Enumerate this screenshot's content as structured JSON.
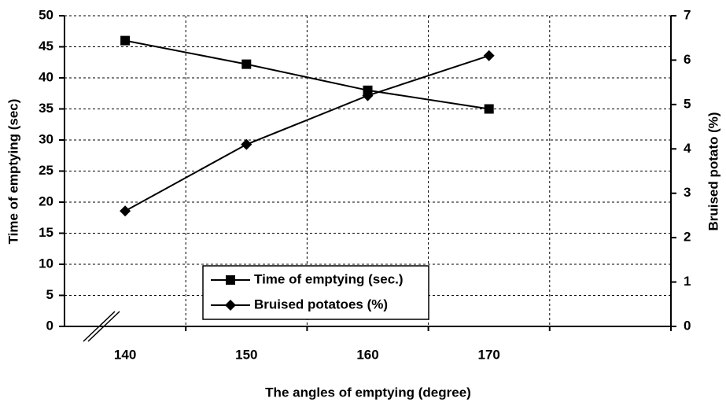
{
  "chart_data": {
    "type": "line",
    "categories": [
      "140",
      "150",
      "160",
      "170",
      null
    ],
    "series": [
      {
        "name": "Time of emptying (sec.)",
        "color": "#000000",
        "marker": "square",
        "values": [
          46,
          42.2,
          38,
          35,
          null
        ]
      },
      {
        "name": "Bruised potatoes (%)",
        "color": "#000000",
        "marker": "diamond",
        "axis": "y2",
        "values": [
          2.6,
          4.1,
          5.2,
          6.1,
          null
        ]
      }
    ],
    "xlabel": "The angles of emptying (degree)",
    "ylabel": "Time of emptying (sec)",
    "y2label": "Bruised potato (%)",
    "ylim": [
      0,
      50
    ],
    "yticks": [
      0,
      5,
      10,
      15,
      20,
      25,
      30,
      35,
      40,
      45,
      50
    ],
    "y2lim": [
      0,
      7
    ],
    "y2ticks": [
      0,
      1,
      2,
      3,
      4,
      5,
      6,
      7
    ],
    "grid": true,
    "legend": "bottom"
  }
}
